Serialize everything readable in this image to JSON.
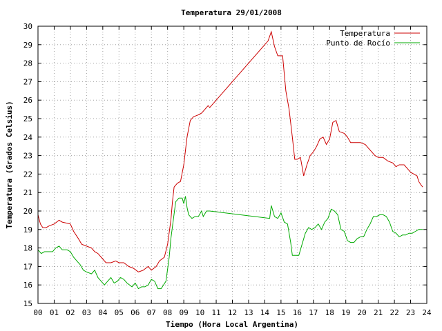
{
  "chart_data": {
    "type": "line",
    "title": "Temperatura 29/01/2008",
    "xlabel": "Tiempo (Hora Local Argentina)",
    "ylabel": "Temperatura (Grados Celsius)",
    "xlim": [
      0,
      24
    ],
    "ylim": [
      15,
      30
    ],
    "grid": true,
    "legend_position": "top-right",
    "x_ticks": [
      "00",
      "01",
      "02",
      "03",
      "04",
      "05",
      "06",
      "07",
      "08",
      "09",
      "10",
      "11",
      "12",
      "13",
      "14",
      "15",
      "16",
      "17",
      "18",
      "19",
      "20",
      "21",
      "22",
      "23",
      "24"
    ],
    "y_ticks": [
      "15",
      "16",
      "17",
      "18",
      "19",
      "20",
      "21",
      "22",
      "23",
      "24",
      "25",
      "26",
      "27",
      "28",
      "29",
      "30"
    ],
    "series": [
      {
        "name": "Temperatura",
        "color": "#cc0000",
        "points": [
          [
            0.0,
            19.8
          ],
          [
            0.15,
            19.3
          ],
          [
            0.3,
            19.1
          ],
          [
            0.5,
            19.1
          ],
          [
            0.7,
            19.2
          ],
          [
            1.0,
            19.3
          ],
          [
            1.3,
            19.5
          ],
          [
            1.5,
            19.4
          ],
          [
            2.0,
            19.3
          ],
          [
            2.2,
            18.9
          ],
          [
            2.5,
            18.5
          ],
          [
            2.7,
            18.2
          ],
          [
            3.0,
            18.1
          ],
          [
            3.3,
            18.0
          ],
          [
            3.5,
            17.8
          ],
          [
            3.7,
            17.7
          ],
          [
            3.9,
            17.5
          ],
          [
            4.2,
            17.2
          ],
          [
            4.5,
            17.2
          ],
          [
            4.8,
            17.3
          ],
          [
            5.0,
            17.2
          ],
          [
            5.3,
            17.2
          ],
          [
            5.6,
            17.0
          ],
          [
            5.9,
            16.9
          ],
          [
            6.2,
            16.7
          ],
          [
            6.5,
            16.8
          ],
          [
            6.8,
            17.0
          ],
          [
            7.0,
            16.8
          ],
          [
            7.3,
            17.0
          ],
          [
            7.5,
            17.3
          ],
          [
            7.8,
            17.5
          ],
          [
            8.0,
            18.2
          ],
          [
            8.2,
            19.5
          ],
          [
            8.3,
            20.5
          ],
          [
            8.4,
            21.3
          ],
          [
            8.6,
            21.5
          ],
          [
            8.8,
            21.6
          ],
          [
            9.0,
            22.5
          ],
          [
            9.2,
            24.0
          ],
          [
            9.4,
            24.9
          ],
          [
            9.6,
            25.1
          ],
          [
            9.9,
            25.2
          ],
          [
            10.1,
            25.3
          ],
          [
            10.2,
            25.4
          ],
          [
            10.4,
            25.6
          ],
          [
            10.5,
            25.7
          ],
          [
            10.6,
            25.6
          ],
          [
            14.2,
            29.2
          ],
          [
            14.4,
            29.7
          ],
          [
            14.6,
            28.9
          ],
          [
            14.8,
            28.4
          ],
          [
            15.1,
            28.4
          ],
          [
            15.3,
            26.5
          ],
          [
            15.5,
            25.5
          ],
          [
            15.7,
            24.0
          ],
          [
            15.85,
            22.8
          ],
          [
            16.0,
            22.8
          ],
          [
            16.2,
            22.9
          ],
          [
            16.3,
            22.4
          ],
          [
            16.4,
            21.9
          ],
          [
            16.6,
            22.5
          ],
          [
            16.8,
            23.0
          ],
          [
            17.0,
            23.2
          ],
          [
            17.2,
            23.5
          ],
          [
            17.4,
            23.9
          ],
          [
            17.6,
            24.0
          ],
          [
            17.8,
            23.6
          ],
          [
            18.0,
            23.9
          ],
          [
            18.2,
            24.8
          ],
          [
            18.4,
            24.9
          ],
          [
            18.6,
            24.3
          ],
          [
            18.9,
            24.2
          ],
          [
            19.1,
            24.0
          ],
          [
            19.3,
            23.7
          ],
          [
            19.6,
            23.7
          ],
          [
            19.9,
            23.7
          ],
          [
            20.2,
            23.6
          ],
          [
            20.4,
            23.4
          ],
          [
            20.6,
            23.2
          ],
          [
            20.8,
            23.0
          ],
          [
            21.0,
            22.9
          ],
          [
            21.3,
            22.9
          ],
          [
            21.6,
            22.7
          ],
          [
            21.9,
            22.6
          ],
          [
            22.1,
            22.4
          ],
          [
            22.3,
            22.5
          ],
          [
            22.6,
            22.5
          ],
          [
            22.8,
            22.3
          ],
          [
            23.0,
            22.1
          ],
          [
            23.2,
            22.0
          ],
          [
            23.4,
            21.9
          ],
          [
            23.5,
            21.6
          ],
          [
            23.65,
            21.4
          ],
          [
            23.75,
            21.3
          ]
        ]
      },
      {
        "name": "Punto de Rocío",
        "color": "#00aa00",
        "points": [
          [
            0.0,
            17.9
          ],
          [
            0.2,
            17.7
          ],
          [
            0.4,
            17.8
          ],
          [
            0.6,
            17.8
          ],
          [
            0.9,
            17.8
          ],
          [
            1.1,
            18.0
          ],
          [
            1.3,
            18.1
          ],
          [
            1.5,
            17.9
          ],
          [
            1.8,
            17.9
          ],
          [
            2.0,
            17.8
          ],
          [
            2.2,
            17.5
          ],
          [
            2.4,
            17.3
          ],
          [
            2.6,
            17.1
          ],
          [
            2.8,
            16.8
          ],
          [
            3.0,
            16.7
          ],
          [
            3.3,
            16.6
          ],
          [
            3.5,
            16.8
          ],
          [
            3.7,
            16.4
          ],
          [
            3.9,
            16.2
          ],
          [
            4.1,
            16.0
          ],
          [
            4.3,
            16.2
          ],
          [
            4.5,
            16.4
          ],
          [
            4.7,
            16.1
          ],
          [
            4.9,
            16.2
          ],
          [
            5.1,
            16.4
          ],
          [
            5.3,
            16.3
          ],
          [
            5.5,
            16.1
          ],
          [
            5.8,
            15.9
          ],
          [
            6.0,
            16.1
          ],
          [
            6.2,
            15.8
          ],
          [
            6.4,
            15.9
          ],
          [
            6.6,
            15.9
          ],
          [
            6.8,
            16.0
          ],
          [
            7.0,
            16.3
          ],
          [
            7.2,
            16.2
          ],
          [
            7.4,
            15.8
          ],
          [
            7.6,
            15.8
          ],
          [
            7.9,
            16.2
          ],
          [
            8.1,
            17.5
          ],
          [
            8.2,
            18.5
          ],
          [
            8.35,
            19.5
          ],
          [
            8.5,
            20.5
          ],
          [
            8.7,
            20.7
          ],
          [
            8.9,
            20.7
          ],
          [
            9.0,
            20.4
          ],
          [
            9.1,
            20.8
          ],
          [
            9.2,
            20.2
          ],
          [
            9.3,
            19.8
          ],
          [
            9.5,
            19.6
          ],
          [
            9.7,
            19.7
          ],
          [
            9.9,
            19.7
          ],
          [
            10.1,
            20.0
          ],
          [
            10.2,
            19.7
          ],
          [
            10.4,
            20.0
          ],
          [
            10.6,
            20.0
          ],
          [
            14.3,
            19.6
          ],
          [
            14.4,
            20.3
          ],
          [
            14.6,
            19.7
          ],
          [
            14.8,
            19.6
          ],
          [
            15.0,
            19.9
          ],
          [
            15.2,
            19.4
          ],
          [
            15.4,
            19.3
          ],
          [
            15.6,
            18.3
          ],
          [
            15.7,
            17.6
          ],
          [
            15.9,
            17.6
          ],
          [
            16.1,
            17.6
          ],
          [
            16.3,
            18.2
          ],
          [
            16.5,
            18.8
          ],
          [
            16.7,
            19.1
          ],
          [
            16.9,
            19.0
          ],
          [
            17.1,
            19.1
          ],
          [
            17.3,
            19.3
          ],
          [
            17.5,
            19.0
          ],
          [
            17.7,
            19.4
          ],
          [
            17.9,
            19.6
          ],
          [
            18.1,
            20.1
          ],
          [
            18.3,
            20.0
          ],
          [
            18.5,
            19.8
          ],
          [
            18.7,
            19.0
          ],
          [
            18.9,
            18.9
          ],
          [
            19.1,
            18.4
          ],
          [
            19.3,
            18.3
          ],
          [
            19.5,
            18.3
          ],
          [
            19.7,
            18.5
          ],
          [
            19.9,
            18.6
          ],
          [
            20.1,
            18.6
          ],
          [
            20.3,
            19.0
          ],
          [
            20.5,
            19.3
          ],
          [
            20.7,
            19.7
          ],
          [
            20.9,
            19.7
          ],
          [
            21.1,
            19.8
          ],
          [
            21.3,
            19.8
          ],
          [
            21.5,
            19.7
          ],
          [
            21.7,
            19.4
          ],
          [
            21.9,
            18.9
          ],
          [
            22.1,
            18.8
          ],
          [
            22.3,
            18.6
          ],
          [
            22.5,
            18.7
          ],
          [
            22.7,
            18.7
          ],
          [
            22.9,
            18.8
          ],
          [
            23.1,
            18.8
          ],
          [
            23.3,
            18.9
          ],
          [
            23.5,
            19.0
          ],
          [
            23.65,
            19.0
          ],
          [
            23.75,
            19.0
          ]
        ]
      }
    ]
  }
}
